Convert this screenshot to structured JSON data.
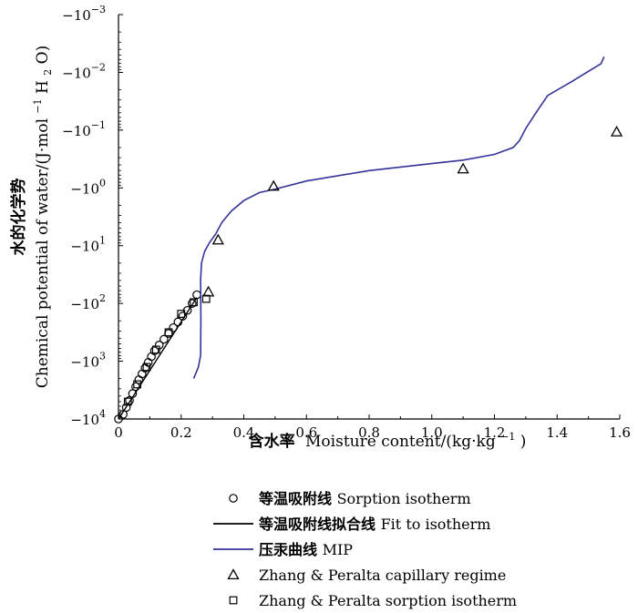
{
  "chart_data": {
    "type": "scatter",
    "title": "",
    "xlabel_cn": "含水率",
    "xlabel_en": "Moisture content/(kg·kg",
    "xlabel_sup": "−1",
    "xlabel_end": ")",
    "ylabel_cn": "水的化学势",
    "ylabel_en": "Chemical potential of water/(J·mol",
    "ylabel_sup": "−1",
    "ylabel_mid": " H",
    "ylabel_sub": "2",
    "ylabel_end": "O)",
    "xlim": [
      0,
      1.6
    ],
    "ylim_log10": [
      -3,
      4
    ],
    "x_ticks": [
      "0",
      "0.2",
      "0.4",
      "0.6",
      "0.8",
      "1.0",
      "1.2",
      "1.4",
      "1.6"
    ],
    "y_tick_base": "−10",
    "y_tick_exponents": [
      "−3",
      "−2",
      "−1",
      "0",
      "1",
      "2",
      "3",
      "4"
    ],
    "series": [
      {
        "key": "sorption",
        "name_cn": "等温吸附线",
        "name_en": "Sorption isotherm",
        "marker": "circle",
        "points": [
          [
            0.0,
            4.0
          ],
          [
            0.015,
            3.92
          ],
          [
            0.025,
            3.8
          ],
          [
            0.035,
            3.68
          ],
          [
            0.045,
            3.56
          ],
          [
            0.055,
            3.44
          ],
          [
            0.065,
            3.32
          ],
          [
            0.075,
            3.22
          ],
          [
            0.085,
            3.12
          ],
          [
            0.095,
            3.02
          ],
          [
            0.105,
            2.92
          ],
          [
            0.115,
            2.82
          ],
          [
            0.13,
            2.72
          ],
          [
            0.145,
            2.62
          ],
          [
            0.16,
            2.52
          ],
          [
            0.175,
            2.42
          ],
          [
            0.19,
            2.32
          ],
          [
            0.205,
            2.22
          ],
          [
            0.22,
            2.12
          ],
          [
            0.235,
            2.0
          ],
          [
            0.25,
            1.85
          ]
        ]
      },
      {
        "key": "fit",
        "name_cn": "等温吸附线拟合线",
        "name_en": "Fit to isotherm",
        "marker": "line",
        "color": "#000000",
        "points": [
          [
            0.0,
            4.0
          ],
          [
            0.25,
            1.9
          ]
        ]
      },
      {
        "key": "mip",
        "name_cn": "压汞曲线",
        "name_en": "MIP",
        "marker": "line",
        "color": "#333399",
        "points": [
          [
            0.24,
            3.3
          ],
          [
            0.255,
            3.1
          ],
          [
            0.262,
            2.9
          ],
          [
            0.263,
            2.3
          ],
          [
            0.262,
            1.6
          ],
          [
            0.265,
            1.3
          ],
          [
            0.275,
            1.1
          ],
          [
            0.29,
            0.95
          ],
          [
            0.31,
            0.8
          ],
          [
            0.33,
            0.6
          ],
          [
            0.36,
            0.4
          ],
          [
            0.4,
            0.22
          ],
          [
            0.45,
            0.08
          ],
          [
            0.5,
            0.02
          ],
          [
            0.6,
            -0.12
          ],
          [
            0.8,
            -0.3
          ],
          [
            1.0,
            -0.42
          ],
          [
            1.1,
            -0.48
          ],
          [
            1.2,
            -0.58
          ],
          [
            1.26,
            -0.7
          ],
          [
            1.28,
            -0.82
          ],
          [
            1.3,
            -1.03
          ],
          [
            1.33,
            -1.28
          ],
          [
            1.37,
            -1.6
          ],
          [
            1.45,
            -1.85
          ],
          [
            1.54,
            -2.15
          ],
          [
            1.55,
            -2.27
          ]
        ]
      },
      {
        "key": "capillary",
        "name_cn": "",
        "name_en": "Zhang & Peralta capillary regime",
        "marker": "triangle",
        "points": [
          [
            0.287,
            1.8
          ],
          [
            0.318,
            0.9
          ],
          [
            0.495,
            -0.03
          ],
          [
            1.1,
            -0.33
          ],
          [
            1.59,
            -0.97
          ]
        ]
      },
      {
        "key": "zp_sorption",
        "name_cn": "",
        "name_en": "Zhang & Peralta sorption isotherm",
        "marker": "square",
        "points": [
          [
            0.03,
            3.7
          ],
          [
            0.06,
            3.4
          ],
          [
            0.09,
            3.1
          ],
          [
            0.12,
            2.8
          ],
          [
            0.16,
            2.5
          ],
          [
            0.2,
            2.18
          ],
          [
            0.24,
            1.98
          ],
          [
            0.28,
            1.92
          ]
        ]
      }
    ],
    "legend_position": "bottom"
  }
}
